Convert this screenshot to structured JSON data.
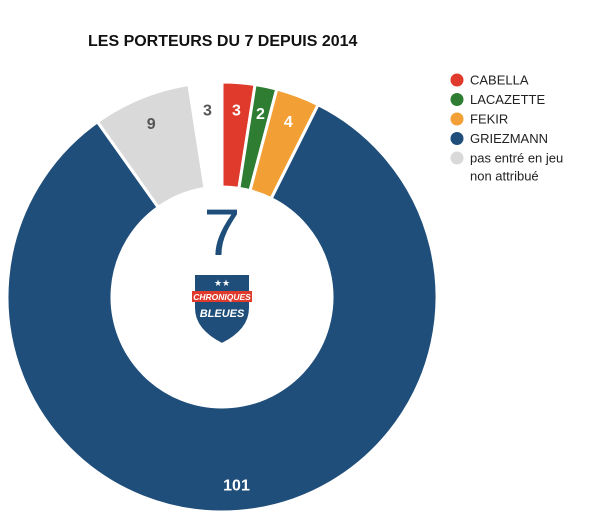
{
  "chart_data": {
    "type": "pie",
    "title": "LES PORTEURS DU 7 DEPUIS 2014",
    "center_label": "7",
    "slices": [
      {
        "key": "cabella",
        "label": "CABELLA",
        "value": 3,
        "display": "3",
        "color": "#e03a2c",
        "text_color": "#ffffff"
      },
      {
        "key": "lacazette",
        "label": "LACAZETTE",
        "value": 2,
        "display": "2",
        "color": "#2e7d32",
        "text_color": "#ffffff"
      },
      {
        "key": "fekir",
        "label": "FEKIR",
        "value": 4,
        "display": "4",
        "color": "#f2a036",
        "text_color": "#ffffff"
      },
      {
        "key": "griezmann",
        "label": "GRIEZMANN",
        "value": 101,
        "display": "101",
        "color": "#1f4e7a",
        "text_color": "#ffffff"
      },
      {
        "key": "pasentre",
        "label": "pas entré en jeu",
        "value": 9,
        "display": "9",
        "color": "#d9d9d9",
        "text_color": "#555555"
      },
      {
        "key": "nonattr",
        "label": "non attribué",
        "value": 3,
        "display": "3",
        "color": "#ffffff",
        "text_color": "#555555"
      }
    ],
    "legend": [
      {
        "label": "CABELLA",
        "color": "#e03a2c"
      },
      {
        "label": "LACAZETTE",
        "color": "#2e7d32"
      },
      {
        "label": "FEKIR",
        "color": "#f2a036"
      },
      {
        "label": "GRIEZMANN",
        "color": "#1f4e7a"
      },
      {
        "label": "pas entré en jeu",
        "label2": "non attribué",
        "color": "#d9d9d9"
      }
    ],
    "legend_position": "top-right"
  },
  "logo": {
    "line1": "CHRONIQUES",
    "line2": "BLEUES"
  }
}
